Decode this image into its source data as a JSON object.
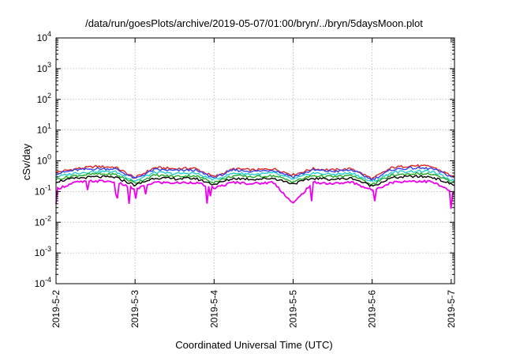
{
  "chart_data": {
    "type": "line",
    "title": "/data/run/goesPlots/archive/2019-05-07/01:00/bryn/../bryn/5daysMoon.plot",
    "xlabel": "Coordinated Universal Time (UTC)",
    "ylabel": "cSv/day",
    "yscale": "log",
    "ylim": [
      0.0001,
      10000
    ],
    "xlim": [
      "2019-05-02T00:00",
      "2019-05-07T01:00"
    ],
    "x_ticks": [
      "2019-5-2",
      "2019-5-3",
      "2019-5-4",
      "2019-5-5",
      "2019-5-6",
      "2019-5-7"
    ],
    "y_ticks": [
      {
        "base": "10",
        "exp": "-4",
        "value": 0.0001
      },
      {
        "base": "10",
        "exp": "-3",
        "value": 0.001
      },
      {
        "base": "10",
        "exp": "-2",
        "value": 0.01
      },
      {
        "base": "10",
        "exp": "-1",
        "value": 0.1
      },
      {
        "base": "10",
        "exp": "0",
        "value": 1
      },
      {
        "base": "10",
        "exp": "1",
        "value": 10
      },
      {
        "base": "10",
        "exp": "2",
        "value": 100
      },
      {
        "base": "10",
        "exp": "3",
        "value": 1000
      },
      {
        "base": "10",
        "exp": "4",
        "value": 10000
      }
    ],
    "grid": true,
    "x_day_points": [
      2.0,
      2.25,
      2.5,
      2.75,
      3.0,
      3.25,
      3.5,
      3.75,
      4.0,
      4.25,
      4.5,
      4.75,
      5.0,
      5.25,
      5.5,
      5.75,
      6.0,
      6.25,
      6.5,
      6.75,
      7.04
    ],
    "series": [
      {
        "color": "#dd2222",
        "values": [
          0.42,
          0.55,
          0.65,
          0.62,
          0.28,
          0.6,
          0.55,
          0.58,
          0.3,
          0.55,
          0.5,
          0.55,
          0.35,
          0.55,
          0.5,
          0.55,
          0.26,
          0.6,
          0.7,
          0.65,
          0.3
        ]
      },
      {
        "color": "#3344ee",
        "values": [
          0.38,
          0.5,
          0.55,
          0.55,
          0.26,
          0.52,
          0.48,
          0.5,
          0.28,
          0.5,
          0.45,
          0.5,
          0.3,
          0.5,
          0.45,
          0.5,
          0.24,
          0.52,
          0.58,
          0.56,
          0.28
        ]
      },
      {
        "color": "#22cccc",
        "values": [
          0.3,
          0.4,
          0.45,
          0.44,
          0.22,
          0.42,
          0.38,
          0.4,
          0.24,
          0.4,
          0.36,
          0.4,
          0.25,
          0.4,
          0.36,
          0.4,
          0.2,
          0.42,
          0.46,
          0.45,
          0.22
        ]
      },
      {
        "color": "#22aa22",
        "values": [
          0.25,
          0.33,
          0.37,
          0.36,
          0.19,
          0.34,
          0.31,
          0.33,
          0.2,
          0.33,
          0.3,
          0.33,
          0.21,
          0.33,
          0.3,
          0.33,
          0.17,
          0.34,
          0.38,
          0.37,
          0.19
        ]
      },
      {
        "color": "#000000",
        "values": [
          0.21,
          0.27,
          0.3,
          0.29,
          0.16,
          0.28,
          0.26,
          0.27,
          0.17,
          0.27,
          0.25,
          0.27,
          0.18,
          0.27,
          0.25,
          0.27,
          0.15,
          0.28,
          0.31,
          0.3,
          0.16
        ]
      },
      {
        "color": "#ee00ee",
        "values": [
          0.12,
          0.2,
          0.22,
          0.21,
          0.12,
          0.2,
          0.19,
          0.2,
          0.13,
          0.2,
          0.18,
          0.2,
          0.04,
          0.2,
          0.18,
          0.2,
          0.11,
          0.2,
          0.22,
          0.21,
          0.09
        ]
      }
    ]
  }
}
